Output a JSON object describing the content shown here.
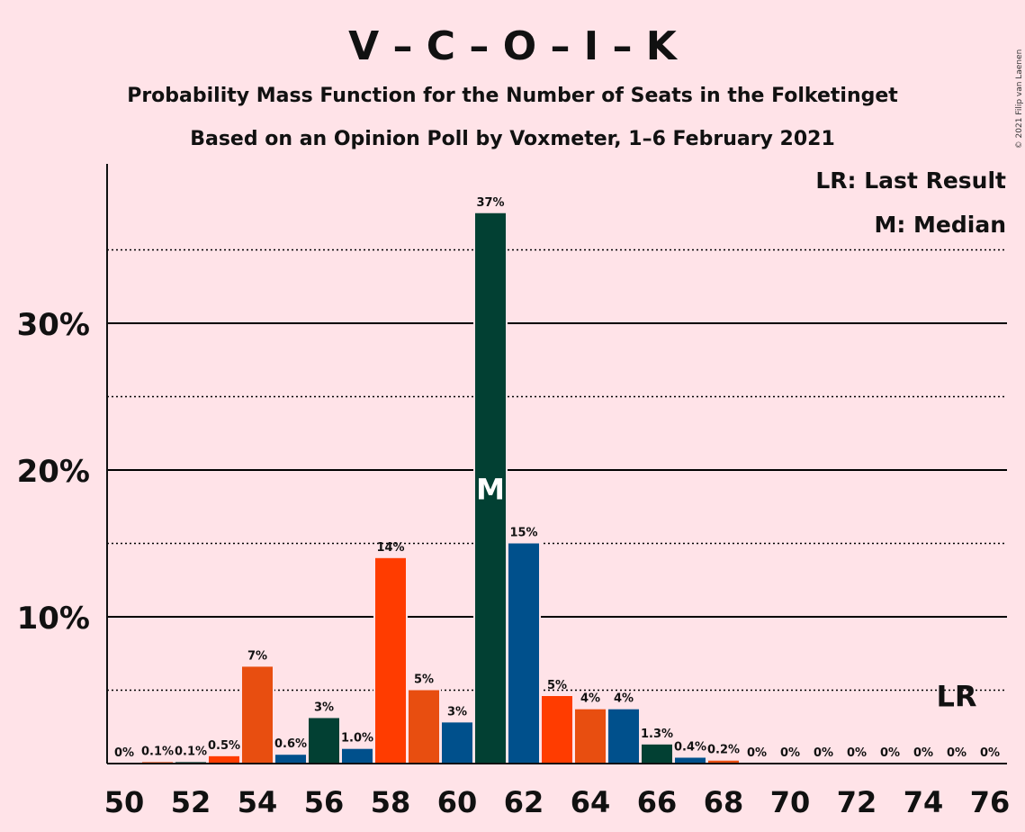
{
  "chart_data": {
    "type": "bar",
    "title": "V – C – O – I – K",
    "subtitle1": "Probability Mass Function for the Number of Seats in the Folketinget",
    "subtitle2": "Based on an Opinion Poll by Voxmeter, 1–6 February 2021",
    "copyright": "© 2021 Filip van Laenen",
    "legend_lr": "LR: Last Result",
    "legend_m": "M: Median",
    "median_marker": "M",
    "last_result_marker": "LR",
    "median_seat": 61,
    "last_result_seat": 75,
    "ylim": [
      0,
      41
    ],
    "y_ticks": [
      {
        "value": 10,
        "label": "10%"
      },
      {
        "value": 20,
        "label": "20%"
      },
      {
        "value": 30,
        "label": "30%"
      }
    ],
    "y_minor_gridlines": [
      5,
      15,
      25,
      35
    ],
    "x_tick_labels": [
      "50",
      "52",
      "54",
      "56",
      "58",
      "60",
      "62",
      "64",
      "66",
      "68",
      "70",
      "72",
      "74",
      "76"
    ],
    "x_tick_values": [
      50,
      52,
      54,
      56,
      58,
      60,
      62,
      64,
      66,
      68,
      70,
      72,
      74,
      76
    ],
    "bars": [
      {
        "seats": 50,
        "value": 0,
        "label": "0%",
        "color": "#FF3C00"
      },
      {
        "seats": 51,
        "value": 0.1,
        "label": "0.1%",
        "color": "#E84E10"
      },
      {
        "seats": 52,
        "value": 0.1,
        "label": "0.1%",
        "color": "#024033"
      },
      {
        "seats": 53,
        "value": 0.5,
        "label": "0.5%",
        "color": "#FF3C00"
      },
      {
        "seats": 54,
        "value": 6.6,
        "label": "7%",
        "color": "#E84E10"
      },
      {
        "seats": 55,
        "value": 0.6,
        "label": "0.6%",
        "color": "#00508C"
      },
      {
        "seats": 56,
        "value": 3.1,
        "label": "3%",
        "color": "#024033"
      },
      {
        "seats": 57,
        "value": 1.0,
        "label": "1.0%",
        "color": "#00508C"
      },
      {
        "seats": 58,
        "value": 14.0,
        "label": "14%",
        "color": "#FF3C00"
      },
      {
        "seats": 59,
        "value": 5.0,
        "label": "5%",
        "color": "#E84E10"
      },
      {
        "seats": 60,
        "value": 2.8,
        "label": "3%",
        "color": "#00508C"
      },
      {
        "seats": 61,
        "value": 37.5,
        "label": "37%",
        "color": "#024033"
      },
      {
        "seats": 62,
        "value": 15.0,
        "label": "15%",
        "color": "#00508C"
      },
      {
        "seats": 63,
        "value": 4.6,
        "label": "5%",
        "color": "#FF3C00"
      },
      {
        "seats": 64,
        "value": 3.7,
        "label": "4%",
        "color": "#E84E10"
      },
      {
        "seats": 65,
        "value": 3.7,
        "label": "4%",
        "color": "#00508C"
      },
      {
        "seats": 66,
        "value": 1.3,
        "label": "1.3%",
        "color": "#024033"
      },
      {
        "seats": 67,
        "value": 0.4,
        "label": "0.4%",
        "color": "#00508C"
      },
      {
        "seats": 68,
        "value": 0.2,
        "label": "0.2%",
        "color": "#E84E10"
      },
      {
        "seats": 69,
        "value": 0,
        "label": "0%",
        "color": "#024033"
      },
      {
        "seats": 70,
        "value": 0,
        "label": "0%",
        "color": "#00508C"
      },
      {
        "seats": 71,
        "value": 0,
        "label": "0%",
        "color": "#FF3C00"
      },
      {
        "seats": 72,
        "value": 0,
        "label": "0%",
        "color": "#E84E10"
      },
      {
        "seats": 73,
        "value": 0,
        "label": "0%",
        "color": "#00508C"
      },
      {
        "seats": 74,
        "value": 0,
        "label": "0%",
        "color": "#024033"
      },
      {
        "seats": 75,
        "value": 0,
        "label": "0%",
        "color": "#00508C"
      },
      {
        "seats": 76,
        "value": 0,
        "label": "0%",
        "color": "#FF3C00"
      }
    ]
  }
}
